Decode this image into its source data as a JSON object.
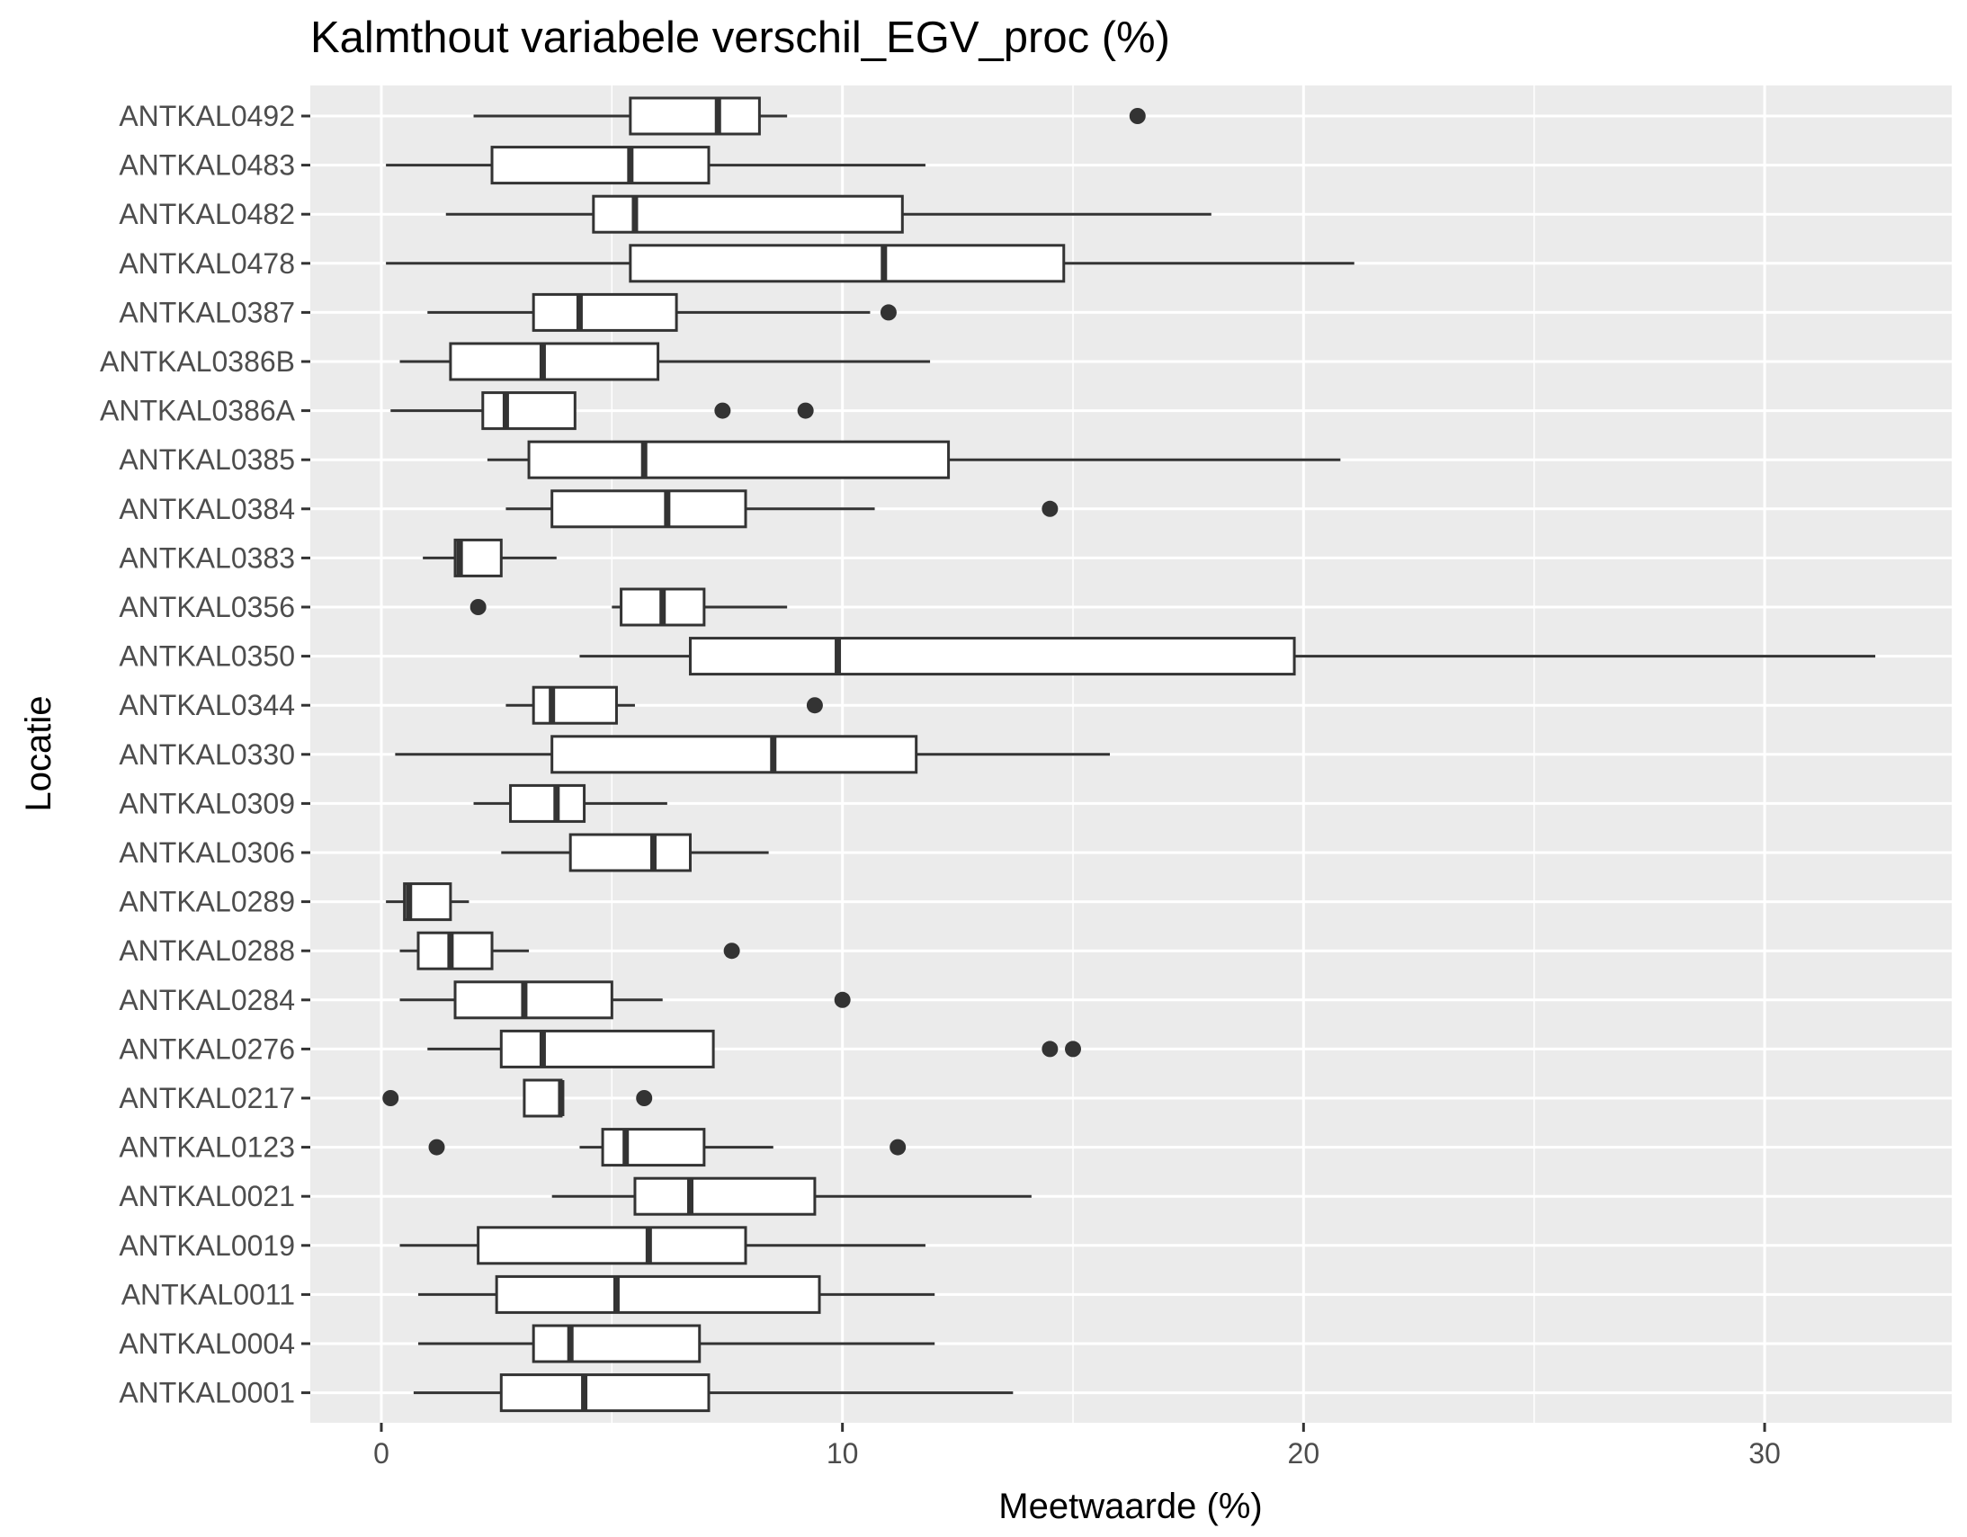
{
  "chart_data": {
    "type": "boxplot",
    "orientation": "horizontal",
    "title": "Kalmthout variabele verschil_EGV_proc (%)",
    "xlabel": "Meetwaarde (%)",
    "ylabel": "Locatie",
    "xlim": [
      -1.6,
      33.7
    ],
    "x_ticks": [
      0,
      10,
      20,
      30
    ],
    "x_tick_labels": [
      "0",
      "10",
      "20",
      "30"
    ],
    "grid": true,
    "background": "#ebebeb",
    "gridline_color": "#ffffff",
    "box_fill": "#ffffff",
    "box_stroke": "#333333",
    "outlier_color": "#333333",
    "categories": [
      "ANTKAL0492",
      "ANTKAL0483",
      "ANTKAL0482",
      "ANTKAL0478",
      "ANTKAL0387",
      "ANTKAL0386B",
      "ANTKAL0386A",
      "ANTKAL0385",
      "ANTKAL0384",
      "ANTKAL0383",
      "ANTKAL0356",
      "ANTKAL0350",
      "ANTKAL0344",
      "ANTKAL0330",
      "ANTKAL0309",
      "ANTKAL0306",
      "ANTKAL0289",
      "ANTKAL0288",
      "ANTKAL0284",
      "ANTKAL0276",
      "ANTKAL0217",
      "ANTKAL0123",
      "ANTKAL0021",
      "ANTKAL0019",
      "ANTKAL0011",
      "ANTKAL0004",
      "ANTKAL0001"
    ],
    "boxes": [
      {
        "min": 2.0,
        "q1": 5.4,
        "median": 7.3,
        "q3": 8.2,
        "max": 8.8,
        "outliers": [
          16.4
        ]
      },
      {
        "min": 0.1,
        "q1": 2.4,
        "median": 5.4,
        "q3": 7.1,
        "max": 11.8,
        "outliers": []
      },
      {
        "min": 1.4,
        "q1": 4.6,
        "median": 5.5,
        "q3": 11.3,
        "max": 18.0,
        "outliers": []
      },
      {
        "min": 0.1,
        "q1": 5.4,
        "median": 10.9,
        "q3": 14.8,
        "max": 21.1,
        "outliers": []
      },
      {
        "min": 1.0,
        "q1": 3.3,
        "median": 4.3,
        "q3": 6.4,
        "max": 10.6,
        "outliers": [
          11.0
        ]
      },
      {
        "min": 0.4,
        "q1": 1.5,
        "median": 3.5,
        "q3": 6.0,
        "max": 11.9,
        "outliers": []
      },
      {
        "min": 0.2,
        "q1": 2.2,
        "median": 2.7,
        "q3": 4.2,
        "max": 4.2,
        "outliers": [
          7.4,
          9.2
        ]
      },
      {
        "min": 2.3,
        "q1": 3.2,
        "median": 5.7,
        "q3": 12.3,
        "max": 20.8,
        "outliers": []
      },
      {
        "min": 2.7,
        "q1": 3.7,
        "median": 6.2,
        "q3": 7.9,
        "max": 10.7,
        "outliers": [
          14.5
        ]
      },
      {
        "min": 0.9,
        "q1": 1.6,
        "median": 1.7,
        "q3": 2.6,
        "max": 3.8,
        "outliers": []
      },
      {
        "min": 5.0,
        "q1": 5.2,
        "median": 6.1,
        "q3": 7.0,
        "max": 8.8,
        "outliers": [
          2.1
        ]
      },
      {
        "min": 4.3,
        "q1": 6.7,
        "median": 9.9,
        "q3": 19.8,
        "max": 32.4,
        "outliers": []
      },
      {
        "min": 2.7,
        "q1": 3.3,
        "median": 3.7,
        "q3": 5.1,
        "max": 5.5,
        "outliers": [
          9.4
        ]
      },
      {
        "min": 0.3,
        "q1": 3.7,
        "median": 8.5,
        "q3": 11.6,
        "max": 15.8,
        "outliers": []
      },
      {
        "min": 2.0,
        "q1": 2.8,
        "median": 3.8,
        "q3": 4.4,
        "max": 6.2,
        "outliers": []
      },
      {
        "min": 2.6,
        "q1": 4.1,
        "median": 5.9,
        "q3": 6.7,
        "max": 8.4,
        "outliers": []
      },
      {
        "min": 0.1,
        "q1": 0.5,
        "median": 0.6,
        "q3": 1.5,
        "max": 1.9,
        "outliers": []
      },
      {
        "min": 0.4,
        "q1": 0.8,
        "median": 1.5,
        "q3": 2.4,
        "max": 3.2,
        "outliers": [
          7.6
        ]
      },
      {
        "min": 0.4,
        "q1": 1.6,
        "median": 3.1,
        "q3": 5.0,
        "max": 6.1,
        "outliers": [
          10.0
        ]
      },
      {
        "min": 1.0,
        "q1": 2.6,
        "median": 3.5,
        "q3": 7.2,
        "max": 7.2,
        "outliers": [
          14.5,
          15.0
        ]
      },
      {
        "min": 3.1,
        "q1": 3.1,
        "median": 3.9,
        "q3": 3.9,
        "max": 3.9,
        "outliers": [
          0.2,
          5.7
        ]
      },
      {
        "min": 4.3,
        "q1": 4.8,
        "median": 5.3,
        "q3": 7.0,
        "max": 8.5,
        "outliers": [
          1.2,
          11.2
        ]
      },
      {
        "min": 3.7,
        "q1": 5.5,
        "median": 6.7,
        "q3": 9.4,
        "max": 14.1,
        "outliers": []
      },
      {
        "min": 0.4,
        "q1": 2.1,
        "median": 5.8,
        "q3": 7.9,
        "max": 11.8,
        "outliers": []
      },
      {
        "min": 0.8,
        "q1": 2.5,
        "median": 5.1,
        "q3": 9.5,
        "max": 12.0,
        "outliers": []
      },
      {
        "min": 0.8,
        "q1": 3.3,
        "median": 4.1,
        "q3": 6.9,
        "max": 12.0,
        "outliers": []
      },
      {
        "min": 0.7,
        "q1": 2.6,
        "median": 4.4,
        "q3": 7.1,
        "max": 13.7,
        "outliers": []
      }
    ]
  }
}
